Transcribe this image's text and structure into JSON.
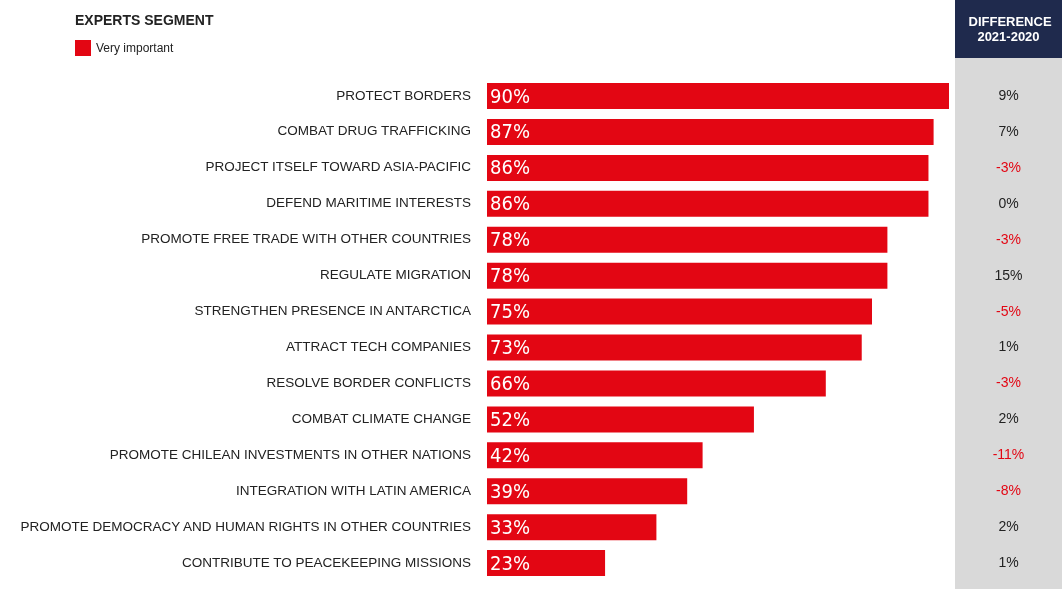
{
  "chart_data": {
    "type": "bar",
    "orientation": "horizontal",
    "title": "EXPERTS SEGMENT",
    "categories": [
      "PROTECT BORDERS",
      "COMBAT DRUG TRAFFICKING",
      "PROJECT ITSELF TOWARD ASIA-PACIFIC",
      "DEFEND MARITIME INTERESTS",
      "PROMOTE FREE TRADE WITH OTHER COUNTRIES",
      "REGULATE MIGRATION",
      "STRENGTHEN PRESENCE IN ANTARCTICA ",
      "ATTRACT TECH COMPANIES",
      "RESOLVE BORDER CONFLICTS",
      "COMBAT CLIMATE CHANGE",
      "PROMOTE CHILEAN INVESTMENTS IN OTHER NATIONS",
      "INTEGRATION WITH LATIN AMERICA",
      "PROMOTE DEMOCRACY AND HUMAN RIGHTS IN OTHER COUNTRIES",
      "CONTRIBUTE TO PEACEKEEPING MISSIONS"
    ],
    "series": [
      {
        "name": "Very important",
        "color": "#e30613",
        "values": [
          90,
          87,
          86,
          86,
          78,
          78,
          75,
          73,
          66,
          52,
          42,
          39,
          33,
          23
        ],
        "value_labels": [
          "90%",
          "87%",
          "86%",
          "86%",
          "78%",
          "78%",
          "75%",
          "73%",
          "66%",
          "52%",
          "42%",
          "39%",
          "33%",
          "23%"
        ]
      }
    ],
    "legend": "top left",
    "grid": false,
    "annotations": [
      "DIFFERENCE 2021-2020",
      "9%",
      "7%",
      "-3%",
      "0%",
      "-3%",
      "15%",
      "-5%",
      "1%",
      "-3%",
      "2%",
      "-11%",
      "-8%",
      "2%",
      "1%"
    ]
  }
}
